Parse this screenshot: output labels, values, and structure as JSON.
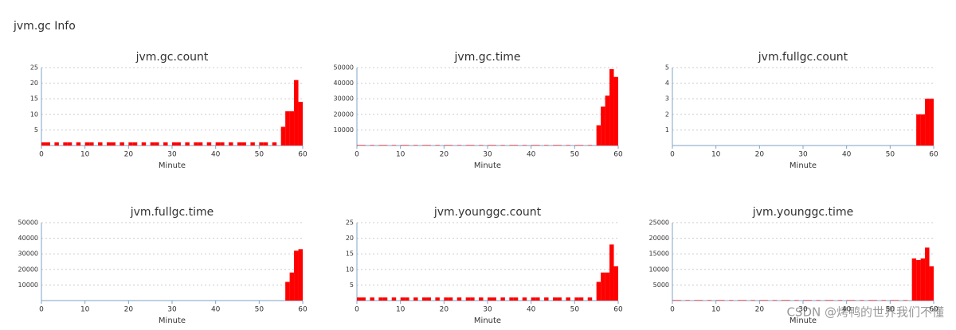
{
  "header": {
    "title": "jvm.gc Info"
  },
  "watermark": "CSDN @烤鸭的世界我们不懂",
  "chart_data": [
    {
      "type": "bar",
      "title": "jvm.gc.count",
      "x_label": "Minute",
      "color": "#ff0000",
      "grid": true,
      "xlim": [
        0,
        60
      ],
      "xticks": [
        0,
        10,
        20,
        30,
        40,
        50,
        60
      ],
      "ylim": [
        0,
        25
      ],
      "yticks": [
        5,
        10,
        15,
        20,
        25
      ],
      "x": [
        0,
        1,
        3,
        5,
        6,
        8,
        10,
        11,
        13,
        15,
        16,
        18,
        20,
        21,
        23,
        25,
        26,
        28,
        30,
        31,
        33,
        35,
        36,
        38,
        40,
        41,
        43,
        45,
        46,
        48,
        50,
        51,
        53,
        55,
        56,
        57,
        58,
        59
      ],
      "values": [
        1,
        1,
        1,
        1,
        1,
        1,
        1,
        1,
        1,
        1,
        1,
        1,
        1,
        1,
        1,
        1,
        1,
        1,
        1,
        1,
        1,
        1,
        1,
        1,
        1,
        1,
        1,
        1,
        1,
        1,
        1,
        1,
        1,
        6,
        11,
        11,
        21,
        14
      ]
    },
    {
      "type": "bar",
      "title": "jvm.gc.time",
      "x_label": "Minute",
      "color": "#ff0000",
      "grid": true,
      "xlim": [
        0,
        60
      ],
      "xticks": [
        0,
        10,
        20,
        30,
        40,
        50,
        60
      ],
      "ylim": [
        0,
        50000
      ],
      "yticks": [
        10000,
        20000,
        30000,
        40000,
        50000
      ],
      "x": [
        0,
        1,
        3,
        5,
        6,
        8,
        10,
        11,
        13,
        15,
        16,
        18,
        20,
        21,
        23,
        25,
        26,
        28,
        30,
        31,
        33,
        35,
        36,
        38,
        40,
        41,
        43,
        45,
        46,
        48,
        50,
        51,
        53,
        55,
        56,
        57,
        58,
        59
      ],
      "values": [
        300,
        300,
        300,
        300,
        300,
        300,
        300,
        300,
        300,
        300,
        300,
        300,
        300,
        300,
        300,
        300,
        300,
        300,
        300,
        300,
        300,
        300,
        300,
        300,
        300,
        300,
        300,
        300,
        300,
        300,
        300,
        300,
        300,
        13000,
        25000,
        32000,
        49000,
        44000
      ]
    },
    {
      "type": "bar",
      "title": "jvm.fullgc.count",
      "x_label": "Minute",
      "color": "#ff0000",
      "grid": true,
      "xlim": [
        0,
        60
      ],
      "xticks": [
        0,
        10,
        20,
        30,
        40,
        50,
        60
      ],
      "ylim": [
        0,
        5
      ],
      "yticks": [
        1,
        2,
        3,
        4,
        5
      ],
      "x": [
        56,
        57,
        58,
        59
      ],
      "values": [
        2,
        2,
        3,
        3
      ]
    },
    {
      "type": "bar",
      "title": "jvm.fullgc.time",
      "x_label": "Minute",
      "color": "#ff0000",
      "grid": true,
      "xlim": [
        0,
        60
      ],
      "xticks": [
        0,
        10,
        20,
        30,
        40,
        50,
        60
      ],
      "ylim": [
        0,
        50000
      ],
      "yticks": [
        10000,
        20000,
        30000,
        40000,
        50000
      ],
      "x": [
        56,
        57,
        58,
        59
      ],
      "values": [
        12000,
        18000,
        32000,
        33000
      ]
    },
    {
      "type": "bar",
      "title": "jvm.younggc.count",
      "x_label": "Minute",
      "color": "#ff0000",
      "grid": true,
      "xlim": [
        0,
        60
      ],
      "xticks": [
        0,
        10,
        20,
        30,
        40,
        50,
        60
      ],
      "ylim": [
        0,
        25
      ],
      "yticks": [
        5,
        10,
        15,
        20,
        25
      ],
      "x": [
        0,
        1,
        3,
        5,
        6,
        8,
        10,
        11,
        13,
        15,
        16,
        18,
        20,
        21,
        23,
        25,
        26,
        28,
        30,
        31,
        33,
        35,
        36,
        38,
        40,
        41,
        43,
        45,
        46,
        48,
        50,
        51,
        53,
        55,
        56,
        57,
        58,
        59
      ],
      "values": [
        1,
        1,
        1,
        1,
        1,
        1,
        1,
        1,
        1,
        1,
        1,
        1,
        1,
        1,
        1,
        1,
        1,
        1,
        1,
        1,
        1,
        1,
        1,
        1,
        1,
        1,
        1,
        1,
        1,
        1,
        1,
        1,
        1,
        6,
        9,
        9,
        18,
        11
      ]
    },
    {
      "type": "bar",
      "title": "jvm.younggc.time",
      "x_label": "Minute",
      "color": "#ff0000",
      "grid": true,
      "xlim": [
        0,
        60
      ],
      "xticks": [
        0,
        10,
        20,
        30,
        40,
        50,
        60
      ],
      "ylim": [
        0,
        25000
      ],
      "yticks": [
        5000,
        10000,
        15000,
        20000,
        25000
      ],
      "x": [
        0,
        1,
        3,
        5,
        6,
        8,
        10,
        11,
        13,
        15,
        16,
        18,
        20,
        21,
        23,
        25,
        26,
        28,
        30,
        31,
        33,
        35,
        36,
        38,
        40,
        41,
        43,
        45,
        46,
        48,
        50,
        51,
        53,
        55,
        56,
        57,
        58,
        59
      ],
      "values": [
        150,
        150,
        150,
        150,
        150,
        150,
        150,
        150,
        150,
        150,
        150,
        150,
        150,
        150,
        150,
        150,
        150,
        150,
        150,
        150,
        150,
        150,
        150,
        150,
        150,
        150,
        150,
        150,
        150,
        150,
        150,
        150,
        150,
        13500,
        13000,
        13500,
        17000,
        11000
      ]
    }
  ]
}
